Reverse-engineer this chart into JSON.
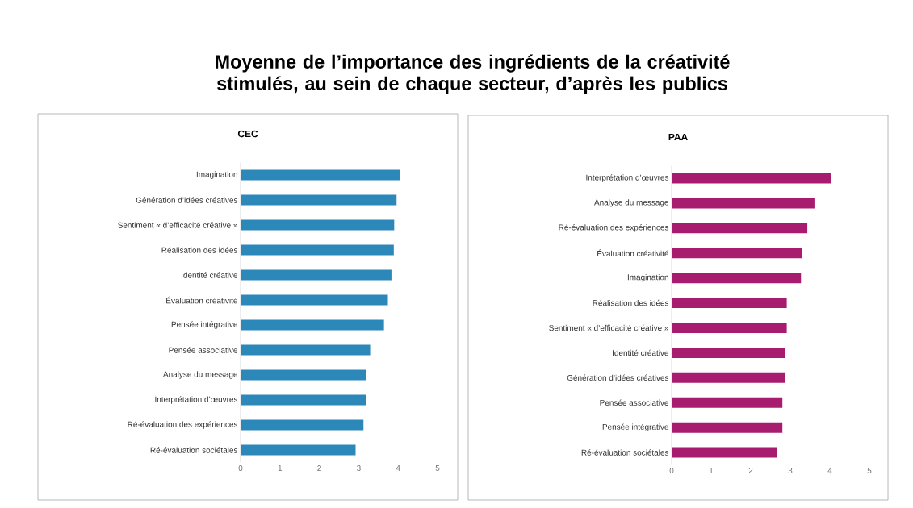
{
  "chart_data": [
    {
      "type": "bar",
      "orientation": "horizontal",
      "title": "CEC",
      "annotations": [
        "Moyenne de l’importance des ingrédients de la créativité stimulés, au sein de chaque secteur, d’après les publics"
      ],
      "categories": [
        "Imagination",
        "Génération d’idées créatives",
        "Sentiment « d’efficacité créative »",
        "Réalisation des idées",
        "Identité créative",
        "Évaluation créativité",
        "Pensée intégrative",
        "Pensée associative",
        "Analyse du message",
        "Interprétation d’œuvres",
        "Ré-évaluation des expériences",
        "Ré-évaluation sociétales"
      ],
      "values": [
        4.05,
        3.96,
        3.9,
        3.89,
        3.83,
        3.74,
        3.64,
        3.29,
        3.19,
        3.19,
        3.12,
        2.92
      ],
      "color": "#2b88b8",
      "xlim": [
        0,
        5
      ],
      "xticks": [
        0,
        1,
        2,
        3,
        4,
        5
      ]
    },
    {
      "type": "bar",
      "orientation": "horizontal",
      "title": "PAA",
      "categories": [
        "Interprétation d’œuvres",
        "Analyse du message",
        "Ré-évaluation des expériences",
        "Évaluation créativité",
        "Imagination",
        "Réalisation des idées",
        "Sentiment « d’efficacité créative »",
        "Identité créative",
        "Génération d’idées créatives",
        "Pensée associative",
        "Pensée intégrative",
        "Ré-évaluation sociétales"
      ],
      "values": [
        4.04,
        3.61,
        3.43,
        3.3,
        3.27,
        2.91,
        2.91,
        2.86,
        2.86,
        2.8,
        2.8,
        2.67
      ],
      "color": "#a81c70",
      "xlim": [
        0,
        5
      ],
      "xticks": [
        0,
        1,
        2,
        3,
        4,
        5
      ]
    }
  ]
}
